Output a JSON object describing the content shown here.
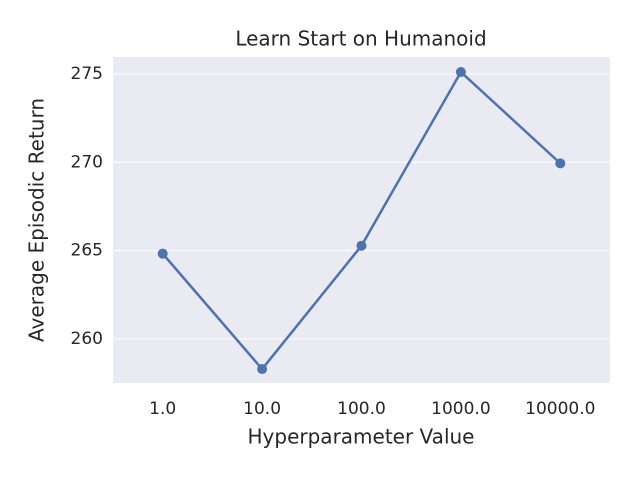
{
  "chart_data": {
    "type": "line",
    "title": "Learn Start on Humanoid",
    "x_label": "Hyperparameter Value",
    "y_label": "Average Episodic Return",
    "categories": [
      "1.0",
      "10.0",
      "100.0",
      "1000.0",
      "10000.0"
    ],
    "series": [
      {
        "name": "Learn Start",
        "color": "#4c72b0",
        "values": [
          264.83,
          258.3,
          265.28,
          275.11,
          269.94
        ]
      }
    ],
    "ylim": [
      257.51,
      275.96
    ],
    "yticks": [
      260,
      265,
      270,
      275
    ],
    "grid": true
  }
}
